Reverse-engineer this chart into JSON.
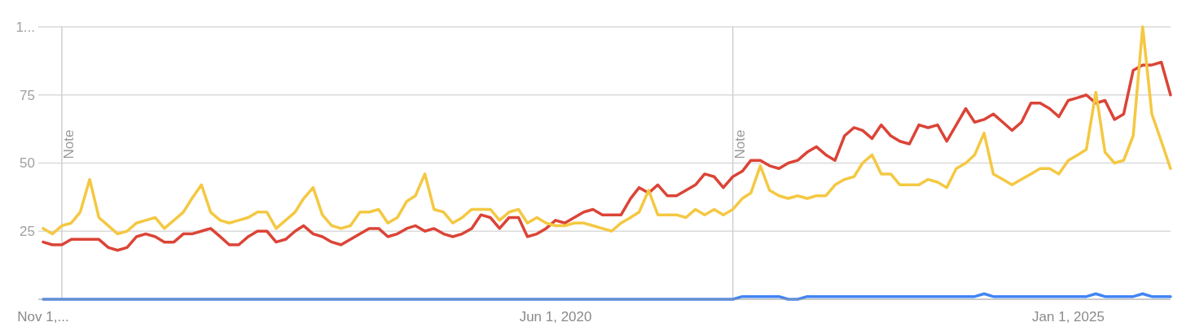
{
  "chart_data": {
    "type": "line",
    "x": [
      "2015-11",
      "2015-12",
      "2016-01",
      "2016-02",
      "2016-03",
      "2016-04",
      "2016-05",
      "2016-06",
      "2016-07",
      "2016-08",
      "2016-09",
      "2016-10",
      "2016-11",
      "2016-12",
      "2017-01",
      "2017-02",
      "2017-03",
      "2017-04",
      "2017-05",
      "2017-06",
      "2017-07",
      "2017-08",
      "2017-09",
      "2017-10",
      "2017-11",
      "2017-12",
      "2018-01",
      "2018-02",
      "2018-03",
      "2018-04",
      "2018-05",
      "2018-06",
      "2018-07",
      "2018-08",
      "2018-09",
      "2018-10",
      "2018-11",
      "2018-12",
      "2019-01",
      "2019-02",
      "2019-03",
      "2019-04",
      "2019-05",
      "2019-06",
      "2019-07",
      "2019-08",
      "2019-09",
      "2019-10",
      "2019-11",
      "2019-12",
      "2020-01",
      "2020-02",
      "2020-03",
      "2020-04",
      "2020-05",
      "2020-06",
      "2020-07",
      "2020-08",
      "2020-09",
      "2020-10",
      "2020-11",
      "2020-12",
      "2021-01",
      "2021-02",
      "2021-03",
      "2021-04",
      "2021-05",
      "2021-06",
      "2021-07",
      "2021-08",
      "2021-09",
      "2021-10",
      "2021-11",
      "2021-12",
      "2022-01",
      "2022-02",
      "2022-03",
      "2022-04",
      "2022-05",
      "2022-06",
      "2022-07",
      "2022-08",
      "2022-09",
      "2022-10",
      "2022-11",
      "2022-12",
      "2023-01",
      "2023-02",
      "2023-03",
      "2023-04",
      "2023-05",
      "2023-06",
      "2023-07",
      "2023-08",
      "2023-09",
      "2023-10",
      "2023-11",
      "2023-12",
      "2024-01",
      "2024-02",
      "2024-03",
      "2024-04",
      "2024-05",
      "2024-06",
      "2024-07",
      "2024-08",
      "2024-09",
      "2024-10",
      "2024-11",
      "2024-12",
      "2025-01",
      "2025-02",
      "2025-03",
      "2025-04",
      "2025-05",
      "2025-06",
      "2025-07",
      "2025-08",
      "2025-09",
      "2025-10",
      "2025-11",
      "2025-12"
    ],
    "series": [
      {
        "color": "#db4437",
        "values": [
          21,
          20,
          20,
          22,
          22,
          22,
          22,
          19,
          18,
          19,
          23,
          24,
          23,
          21,
          21,
          24,
          24,
          25,
          26,
          23,
          20,
          20,
          23,
          25,
          25,
          21,
          22,
          25,
          27,
          24,
          23,
          21,
          20,
          22,
          24,
          26,
          26,
          23,
          24,
          26,
          27,
          25,
          26,
          24,
          23,
          24,
          26,
          31,
          30,
          26,
          30,
          30,
          23,
          24,
          26,
          29,
          28,
          30,
          32,
          33,
          31,
          31,
          31,
          37,
          41,
          39,
          42,
          38,
          38,
          40,
          42,
          46,
          45,
          41,
          45,
          47,
          51,
          51,
          49,
          48,
          50,
          51,
          54,
          56,
          53,
          51,
          60,
          63,
          62,
          59,
          64,
          60,
          58,
          57,
          64,
          63,
          64,
          58,
          64,
          70,
          65,
          66,
          68,
          65,
          62,
          65,
          72,
          72,
          70,
          67,
          73,
          74,
          75,
          72,
          73,
          66,
          68,
          84,
          86,
          86,
          87,
          75
        ]
      },
      {
        "color": "#f4c842",
        "values": [
          26,
          24,
          27,
          28,
          32,
          44,
          30,
          27,
          24,
          25,
          28,
          29,
          30,
          26,
          29,
          32,
          37,
          42,
          32,
          29,
          28,
          29,
          30,
          32,
          32,
          26,
          29,
          32,
          37,
          41,
          31,
          27,
          26,
          27,
          32,
          32,
          33,
          28,
          30,
          36,
          38,
          46,
          33,
          32,
          28,
          30,
          33,
          33,
          33,
          29,
          32,
          33,
          28,
          30,
          28,
          27,
          27,
          28,
          28,
          27,
          26,
          25,
          28,
          30,
          32,
          40,
          31,
          31,
          31,
          30,
          33,
          31,
          33,
          31,
          33,
          37,
          39,
          49,
          40,
          38,
          37,
          38,
          37,
          38,
          38,
          42,
          44,
          45,
          50,
          53,
          46,
          46,
          42,
          42,
          42,
          44,
          43,
          41,
          48,
          50,
          53,
          61,
          46,
          44,
          42,
          44,
          46,
          48,
          48,
          46,
          51,
          53,
          55,
          76,
          54,
          50,
          51,
          60,
          100,
          68,
          58,
          48
        ]
      },
      {
        "color": "#4285f4",
        "values": [
          0,
          0,
          0,
          0,
          0,
          0,
          0,
          0,
          0,
          0,
          0,
          0,
          0,
          0,
          0,
          0,
          0,
          0,
          0,
          0,
          0,
          0,
          0,
          0,
          0,
          0,
          0,
          0,
          0,
          0,
          0,
          0,
          0,
          0,
          0,
          0,
          0,
          0,
          0,
          0,
          0,
          0,
          0,
          0,
          0,
          0,
          0,
          0,
          0,
          0,
          0,
          0,
          0,
          0,
          0,
          0,
          0,
          0,
          0,
          0,
          0,
          0,
          0,
          0,
          0,
          0,
          0,
          0,
          0,
          0,
          0,
          0,
          0,
          0,
          0,
          1,
          1,
          1,
          1,
          1,
          0,
          0,
          1,
          1,
          1,
          1,
          1,
          1,
          1,
          1,
          1,
          1,
          1,
          1,
          1,
          1,
          1,
          1,
          1,
          1,
          1,
          2,
          1,
          1,
          1,
          1,
          1,
          1,
          1,
          1,
          1,
          1,
          1,
          2,
          1,
          1,
          1,
          1,
          2,
          1,
          1,
          1
        ]
      }
    ],
    "xlim": [
      "2015-10-16",
      "2025-12"
    ],
    "xticks": [
      {
        "value": "2015-11-01",
        "label": "Nov 1,..."
      },
      {
        "value": "2020-06-01",
        "label": "Jun 1, 2020"
      },
      {
        "value": "2025-01-01",
        "label": "Jan 1, 2025"
      }
    ],
    "ylim": [
      0,
      100
    ],
    "yticks": [
      {
        "value": 100,
        "label": "1..."
      },
      75,
      50,
      25
    ],
    "grid": "y",
    "ref_lines": [
      {
        "axis": "x",
        "value": "2016-01",
        "label": "Note"
      },
      {
        "axis": "x",
        "value": "2022-01",
        "label": "Note"
      }
    ]
  }
}
